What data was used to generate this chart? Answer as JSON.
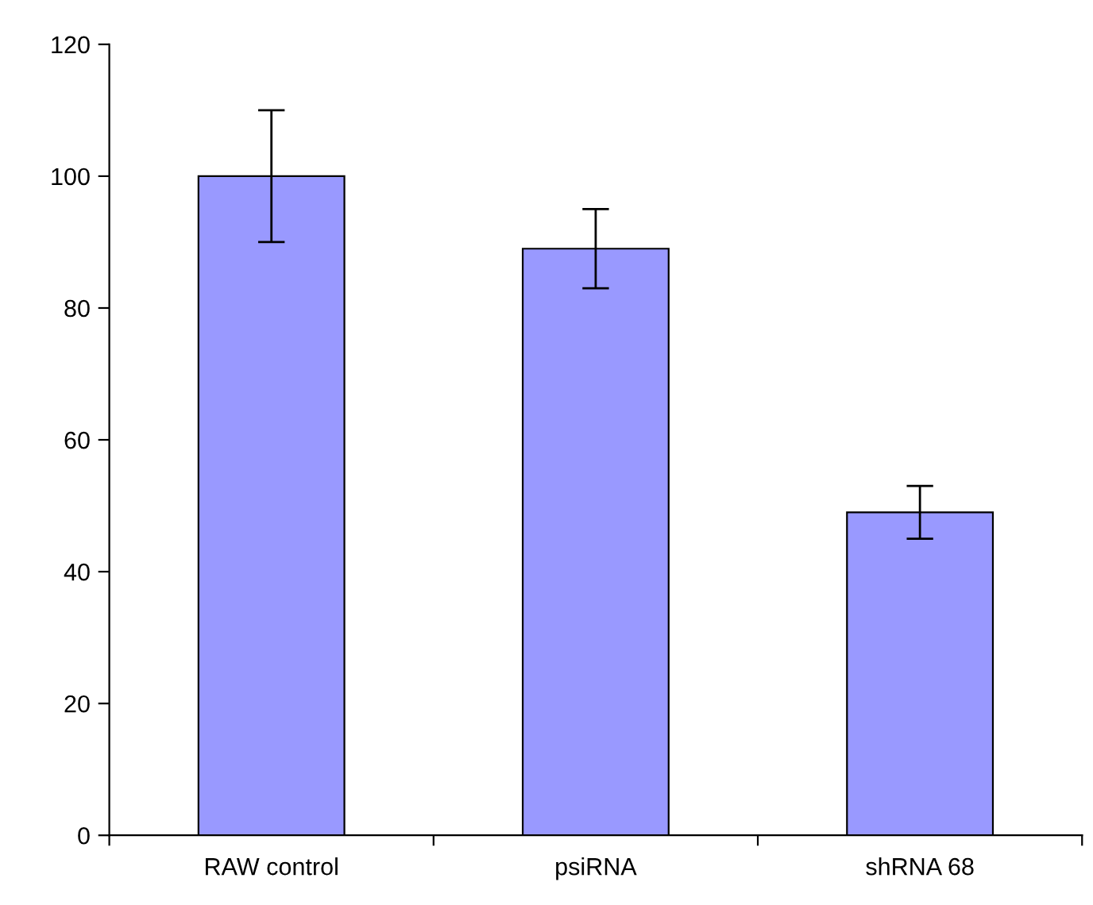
{
  "chart_data": {
    "type": "bar",
    "categories": [
      "RAW control",
      "psiRNA",
      "shRNA 68"
    ],
    "values": [
      100,
      89,
      49
    ],
    "errors": [
      10,
      6,
      4
    ],
    "color": "#9999ff",
    "ylim": [
      0,
      120
    ],
    "yticks": [
      0,
      20,
      40,
      60,
      80,
      100,
      120
    ],
    "grid": false
  }
}
